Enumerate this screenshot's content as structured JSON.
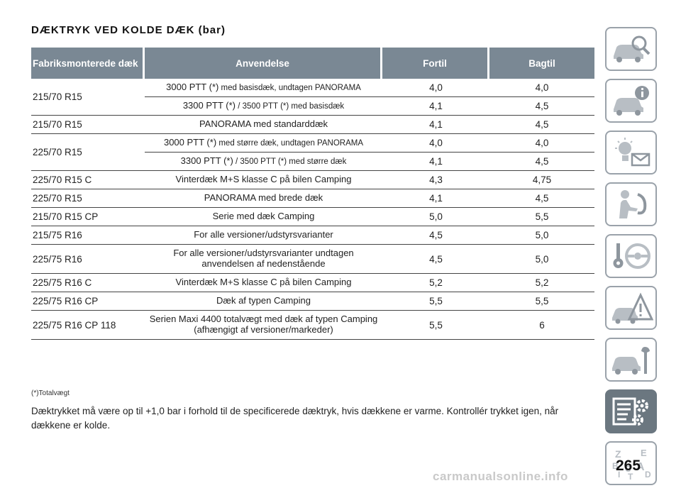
{
  "title": "DÆKTRYK VED KOLDE DÆK (bar)",
  "table": {
    "headers": [
      "Fabriksmonterede dæk",
      "Anvendelse",
      "Fortil",
      "Bagtil"
    ],
    "rows": [
      {
        "tire": "215/70 R15",
        "usage_main": "3000 PTT (*)",
        "usage_small": " med basisdæk, undtagen PANORAMA",
        "front": "4,0",
        "rear": "4,0"
      },
      {
        "tire": "",
        "usage_main": "3300 PTT (*)",
        "usage_small": " / 3500 PTT (*) med basisdæk",
        "front": "4,1",
        "rear": "4,5"
      },
      {
        "tire": "215/70 R15",
        "usage_main": "PANORAMA med standarddæk",
        "usage_small": "",
        "front": "4,1",
        "rear": "4,5"
      },
      {
        "tire": "225/70 R15",
        "usage_main": "3000 PTT (*)",
        "usage_small": " med større dæk, undtagen PANORAMA",
        "front": "4,0",
        "rear": "4,0"
      },
      {
        "tire": "",
        "usage_main": "3300 PTT (*)",
        "usage_small": " / 3500 PTT (*) med større dæk",
        "front": "4,1",
        "rear": "4,5"
      },
      {
        "tire": "225/70 R15 C",
        "usage_main": "Vinterdæk M+S klasse C på bilen Camping",
        "usage_small": "",
        "front": "4,3",
        "rear": "4,75"
      },
      {
        "tire": "225/70 R15",
        "usage_main": "PANORAMA med brede dæk",
        "usage_small": "",
        "front": "4,1",
        "rear": "4,5"
      },
      {
        "tire": "215/70 R15 CP",
        "usage_main": "Serie med dæk Camping",
        "usage_small": "",
        "front": "5,0",
        "rear": "5,5"
      },
      {
        "tire": "215/75 R16",
        "usage_main": "For alle versioner/udstyrsvarianter",
        "usage_small": "",
        "front": "4,5",
        "rear": "5,0"
      },
      {
        "tire": "225/75 R16",
        "usage_main": "For alle versioner/udstyrsvarianter undtagen anvendelsen af nedenstående",
        "usage_small": "",
        "front": "4,5",
        "rear": "5,0"
      },
      {
        "tire": "225/75 R16 C",
        "usage_main": "Vinterdæk M+S klasse C på bilen Camping",
        "usage_small": "",
        "front": "5,2",
        "rear": "5,2"
      },
      {
        "tire": "225/75 R16 CP",
        "usage_main": "Dæk af typen Camping",
        "usage_small": "",
        "front": "5,5",
        "rear": "5,5"
      },
      {
        "tire": "225/75 R16 CP 118",
        "usage_main": "Serien Maxi 4400 totalvægt med dæk af typen Camping (afhængigt af versioner/markeder)",
        "usage_small": "",
        "front": "5,5",
        "rear": "6"
      }
    ]
  },
  "footnote": "(*)Totalvægt",
  "paragraph": "Dæktrykket må være op til +1,0 bar i forhold til de specificerede dæktryk, hvis dækkene er varme. Kontrollér trykket igen, når dækkene er kolde.",
  "page_number": "265",
  "watermark": "carmanualsonline.info",
  "sidebar": {
    "letters": [
      "Z",
      "E",
      "B",
      "A",
      "I",
      "C",
      "T",
      "D"
    ],
    "active_index": 7,
    "icons": [
      "car-search-icon",
      "car-info-icon",
      "warning-lights-icon",
      "airbag-seat-icon",
      "key-steering-icon",
      "car-breakdown-icon",
      "car-service-icon",
      "specs-gear-icon",
      "alphabet-index-icon"
    ]
  },
  "colors": {
    "header_bg": "#7a8894",
    "active_tile": "#6b7780",
    "tile_border": "#9aa2aa"
  }
}
